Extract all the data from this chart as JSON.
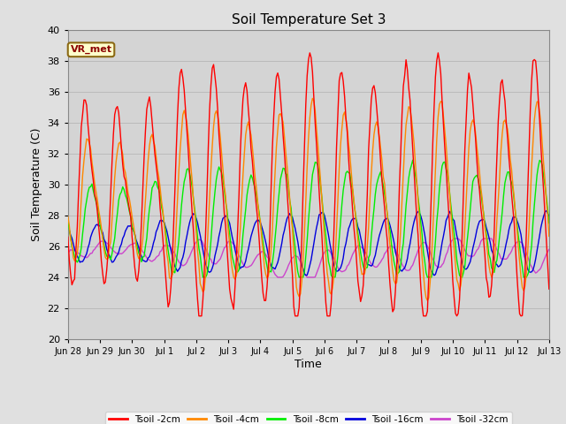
{
  "title": "Soil Temperature Set 3",
  "xlabel": "Time",
  "ylabel": "Soil Temperature (C)",
  "ylim": [
    20,
    40
  ],
  "background_color": "#e0e0e0",
  "plot_bg_color": "#d4d4d4",
  "grid_color": "#c0c0c0",
  "annotation_text": "VR_met",
  "annotation_bg": "#ffffcc",
  "annotation_border": "#8b6914",
  "colors": {
    "t2": "#ff0000",
    "t4": "#ff8800",
    "t8": "#00ee00",
    "t16": "#0000dd",
    "t32": "#cc44cc"
  },
  "lw": 1.0,
  "tick_labels": [
    "Jun 28",
    "Jun 29",
    "Jun 30",
    "Jul 1",
    "Jul 2",
    "Jul 3",
    "Jul 4",
    "Jul 5",
    "Jul 6",
    "Jul 7",
    "Jul 8",
    "Jul 9",
    "Jul 10",
    "Jul 11",
    "Jul 12",
    "Jul 13"
  ],
  "yticks": [
    20,
    22,
    24,
    26,
    28,
    30,
    32,
    34,
    36,
    38,
    40
  ]
}
